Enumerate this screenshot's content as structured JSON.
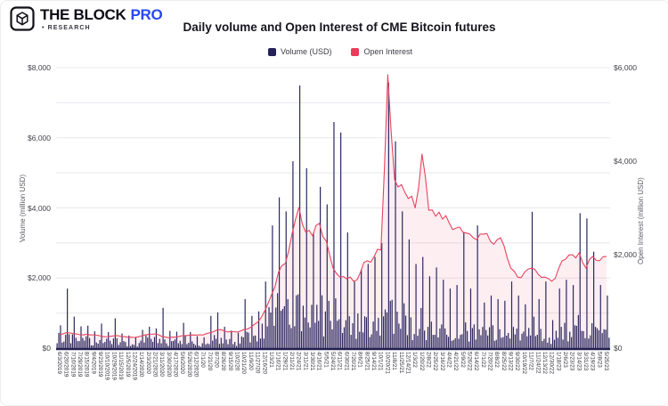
{
  "header": {
    "brand": "THE BLOCK",
    "brand_suffix": "PRO",
    "brand_sub": "• RESEARCH",
    "brand_pro_color": "#2946f5"
  },
  "chart_data": {
    "type": "combo-bar-line",
    "title": "Daily volume and Open Interest of CME Bitcoin futures",
    "legend_position": "top-center",
    "grid": "horizontal every 1000 (left axis), light gray",
    "left_axis": {
      "label": "Volume (million USD)",
      "range": [
        0,
        8000
      ],
      "ticks": [
        "$8,000",
        "$6,000",
        "$4,000",
        "$2,000",
        "$0"
      ]
    },
    "right_axis": {
      "label": "Open Interest (million USD)",
      "range": [
        0,
        6000
      ],
      "ticks": [
        "$6,000",
        "$4,000",
        "$2,000",
        "$0"
      ]
    },
    "categories": [
      "6/3/2019",
      "6/20/2019",
      "7/10/2019",
      "7/29/2019",
      "8/15/2019",
      "9/4/2019",
      "9/23/2019",
      "10/10/2019",
      "10/29/2019",
      "11/15/2019",
      "12/5/2019",
      "12/24/2019",
      "1/14/2020",
      "2/3/2020",
      "2/21/2020",
      "3/11/2020",
      "3/30/2020",
      "4/17/2020",
      "5/6/2020",
      "5/26/2020",
      "6/12/2020",
      "7/1/20",
      "7/21/20",
      "8/7/20",
      "8/26/20",
      "9/15/20",
      "10/2/20",
      "10/21/20",
      "11/9/20",
      "11/27/20",
      "12/16/20",
      "1/3/21",
      "1/16/21",
      "1/29/21",
      "2/11/21",
      "2/24/21",
      "3/11/21",
      "3/30/21",
      "4/16/21",
      "5/5/21",
      "5/24/21",
      "6/11/21",
      "6/30/21",
      "7/20/21",
      "8/6/21",
      "8/25/21",
      "9/14/21",
      "10/1/21",
      "10/20/21",
      "11/8/21",
      "11/25/21",
      "12/14/21",
      "1/3/22",
      "1/20/22",
      "2/8/22",
      "2/25/22",
      "3/16/22",
      "4/4/22",
      "4/21/22",
      "5/9/22",
      "5/26/22",
      "6/14/22",
      "7/1/22",
      "7/20/22",
      "8/8/22",
      "8/25/22",
      "9/13/22",
      "9/30/22",
      "10/19/22",
      "11/7/22",
      "11/24/22",
      "12/13/22",
      "12/30/22",
      "1/18/23",
      "2/6/23",
      "2/23/23",
      "3/14/23",
      "3/31/23",
      "4/19/23",
      "5/8/23",
      "5/25/23"
    ],
    "series": [
      {
        "name": "Volume (USD)",
        "type": "bar",
        "axis": "left",
        "unit": "million USD",
        "color": "#2b2860",
        "typical_per_tick": [
          300,
          380,
          330,
          250,
          260,
          200,
          240,
          190,
          250,
          180,
          150,
          130,
          210,
          260,
          255,
          390,
          200,
          190,
          260,
          200,
          150,
          130,
          260,
          300,
          250,
          210,
          180,
          340,
          310,
          350,
          520,
          900,
          1150,
          1000,
          1100,
          1300,
          1000,
          900,
          1050,
          950,
          1200,
          800,
          650,
          550,
          700,
          700,
          780,
          700,
          1400,
          1250,
          900,
          780,
          700,
          780,
          620,
          700,
          600,
          520,
          500,
          700,
          500,
          680,
          420,
          460,
          400,
          400,
          500,
          420,
          350,
          680,
          380,
          400,
          250,
          450,
          500,
          480,
          780,
          620,
          560,
          450,
          400
        ],
        "max_per_tick": [
          650,
          1700,
          900,
          620,
          640,
          480,
          700,
          460,
          850,
          420,
          360,
          320,
          520,
          610,
          560,
          1150,
          490,
          470,
          720,
          460,
          340,
          310,
          920,
          1020,
          610,
          500,
          440,
          1400,
          920,
          1050,
          1900,
          3500,
          4300,
          3900,
          5330,
          7490,
          5130,
          3300,
          4600,
          4100,
          6450,
          6150,
          3300,
          1900,
          2250,
          2400,
          2600,
          3000,
          7570,
          5900,
          3900,
          3100,
          2400,
          2600,
          2050,
          2300,
          1950,
          1700,
          1800,
          3300,
          1700,
          3500,
          1300,
          1500,
          1400,
          1350,
          1900,
          1500,
          1250,
          3890,
          1400,
          1900,
          800,
          1700,
          1950,
          1800,
          3850,
          3700,
          2750,
          1800,
          1500
        ]
      },
      {
        "name": "Open Interest",
        "type": "line-area",
        "axis": "right",
        "unit": "million USD",
        "color": "#e8435f",
        "fill_color": "rgba(233,67,97,0.09)",
        "values_per_tick": [
          290,
          335,
          310,
          285,
          300,
          285,
          260,
          248,
          265,
          250,
          232,
          228,
          265,
          298,
          305,
          245,
          222,
          235,
          268,
          278,
          280,
          282,
          330,
          388,
          375,
          352,
          342,
          400,
          452,
          560,
          800,
          1140,
          1620,
          1810,
          2440,
          3010,
          2480,
          2400,
          2670,
          2290,
          1710,
          1520,
          1480,
          1430,
          1620,
          1870,
          1960,
          2100,
          5850,
          3600,
          3500,
          3200,
          3000,
          4150,
          2950,
          2820,
          2760,
          2670,
          2570,
          2480,
          2440,
          2320,
          2440,
          2290,
          2320,
          2190,
          1710,
          1520,
          1620,
          1710,
          1580,
          1520,
          1430,
          1710,
          1900,
          2000,
          2040,
          1710,
          1960,
          1870,
          1960
        ]
      }
    ]
  },
  "legend": [
    {
      "label": "Volume (USD)",
      "color": "#262158"
    },
    {
      "label": "Open Interest",
      "color": "#ee3a5b"
    }
  ]
}
